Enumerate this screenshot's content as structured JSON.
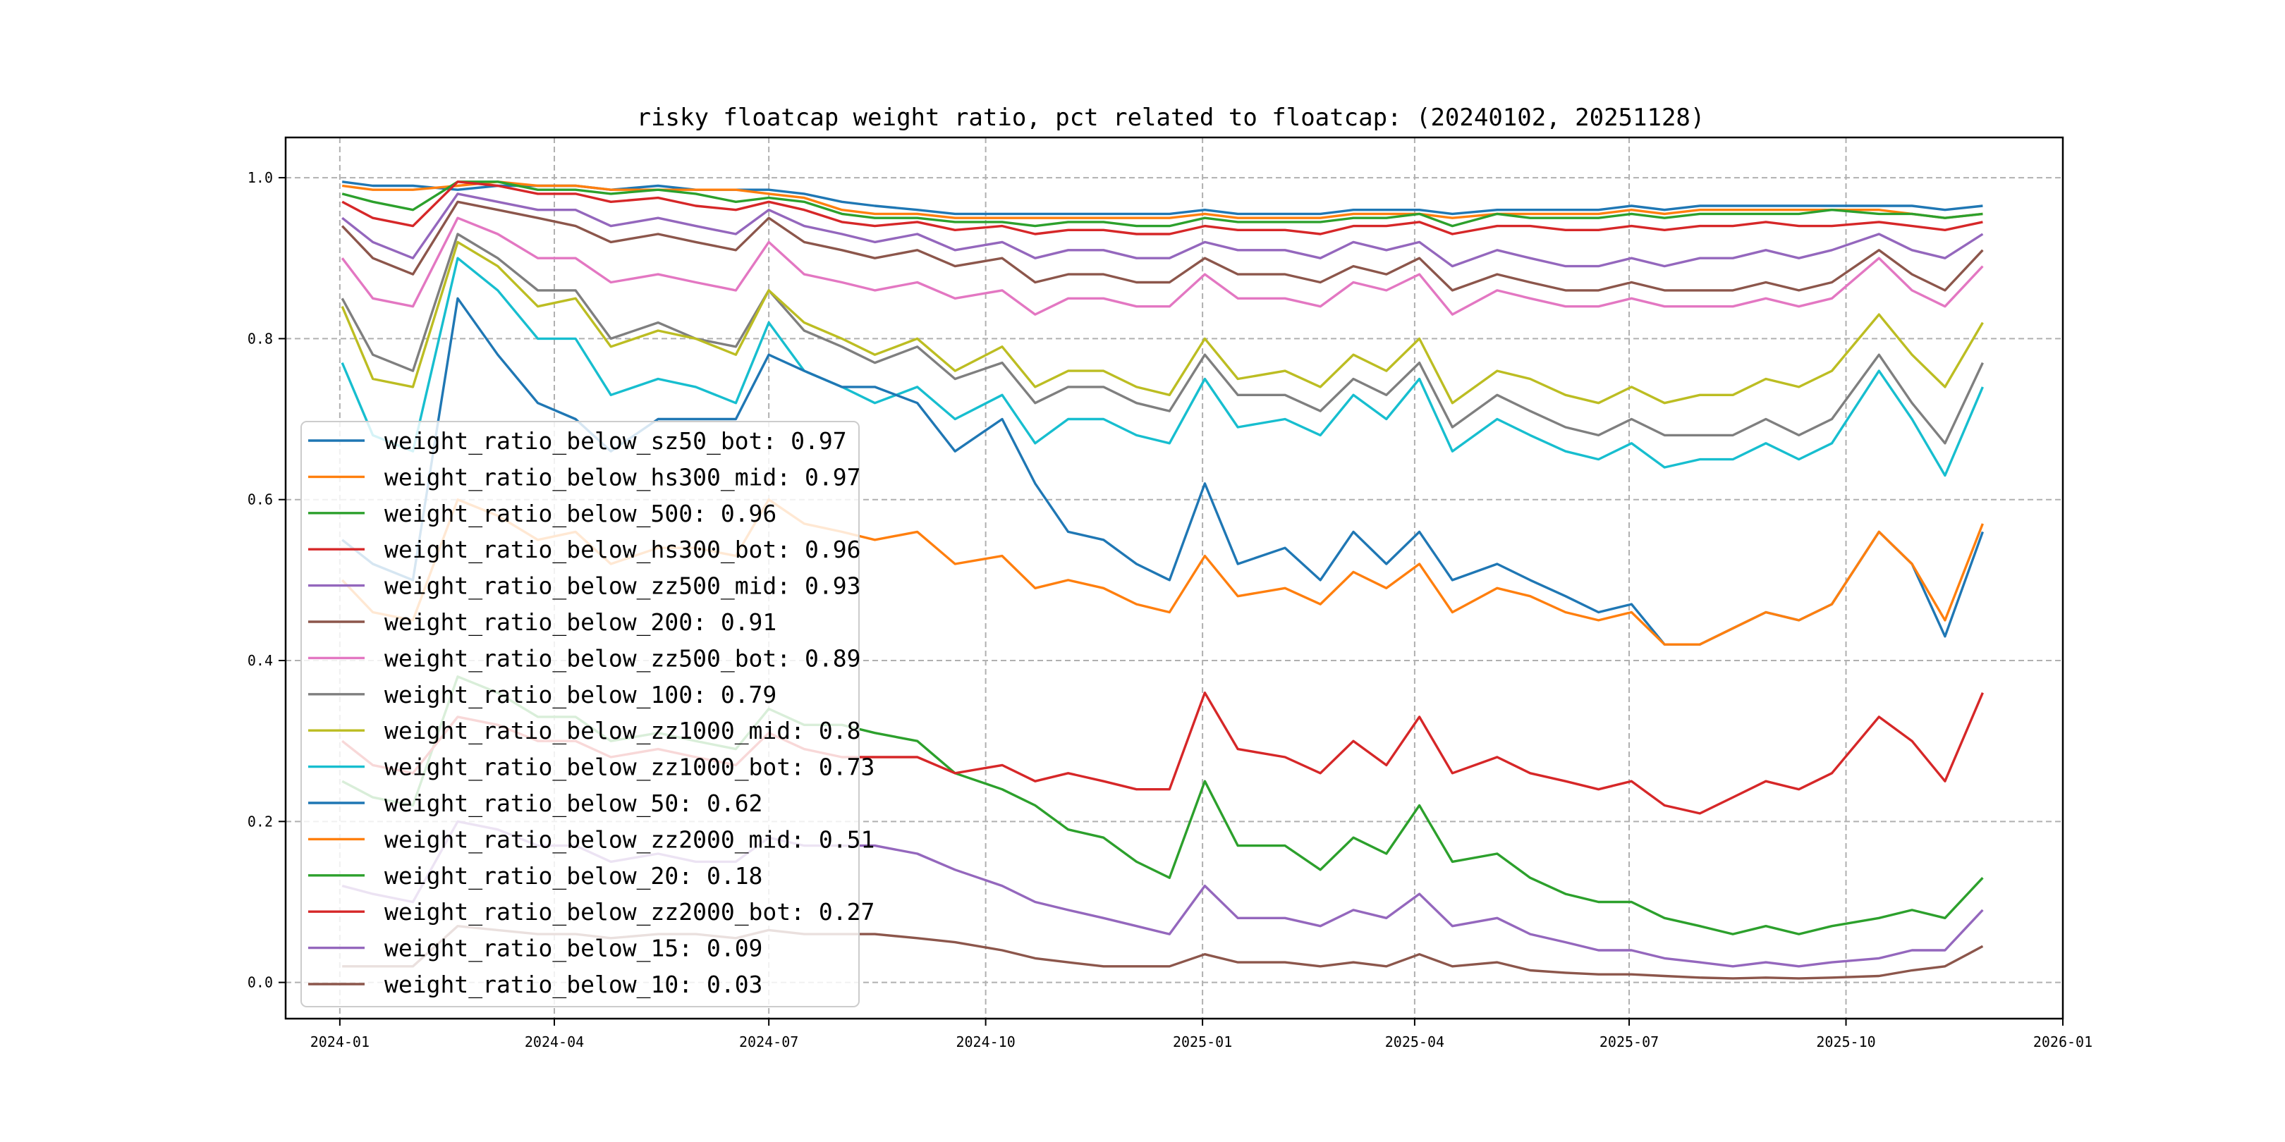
{
  "chart_data": {
    "type": "line",
    "title": "risky floatcap weight ratio, pct related to floatcap: (20240102, 20251128)",
    "xlabel": "",
    "ylabel": "",
    "x_range": [
      "2023-12-09",
      "2026-01-01"
    ],
    "ylim": [
      -0.045,
      1.05
    ],
    "grid": true,
    "legend_placement": "lower-left",
    "x_ticks": [
      "2024-01",
      "2024-04",
      "2024-07",
      "2024-10",
      "2025-01",
      "2025-04",
      "2025-07",
      "2025-10",
      "2026-01"
    ],
    "y_ticks": [
      "0.0",
      "0.2",
      "0.4",
      "0.6",
      "0.8",
      "1.0"
    ],
    "x": [
      "2024-01-02",
      "2024-01-15",
      "2024-02-01",
      "2024-02-20",
      "2024-03-08",
      "2024-03-25",
      "2024-04-10",
      "2024-04-25",
      "2024-05-15",
      "2024-05-31",
      "2024-06-17",
      "2024-07-01",
      "2024-07-16",
      "2024-08-01",
      "2024-08-15",
      "2024-09-02",
      "2024-09-18",
      "2024-10-08",
      "2024-10-22",
      "2024-11-05",
      "2024-11-20",
      "2024-12-04",
      "2024-12-18",
      "2025-01-02",
      "2025-01-16",
      "2025-02-05",
      "2025-02-20",
      "2025-03-06",
      "2025-03-20",
      "2025-04-03",
      "2025-04-17",
      "2025-05-06",
      "2025-05-20",
      "2025-06-04",
      "2025-06-18",
      "2025-07-02",
      "2025-07-16",
      "2025-07-31",
      "2025-08-14",
      "2025-08-28",
      "2025-09-11",
      "2025-09-25",
      "2025-10-15",
      "2025-10-29",
      "2025-11-12",
      "2025-11-28"
    ],
    "series": [
      {
        "name": "weight_ratio_below_sz50_bot: 0.97",
        "legend_value": "0.97",
        "color": "#1f77b4",
        "values": [
          0.995,
          0.99,
          0.99,
          0.985,
          0.99,
          0.99,
          0.99,
          0.985,
          0.99,
          0.985,
          0.985,
          0.985,
          0.98,
          0.97,
          0.965,
          0.96,
          0.955,
          0.955,
          0.955,
          0.955,
          0.955,
          0.955,
          0.955,
          0.96,
          0.955,
          0.955,
          0.955,
          0.96,
          0.96,
          0.96,
          0.955,
          0.96,
          0.96,
          0.96,
          0.96,
          0.965,
          0.96,
          0.965,
          0.965,
          0.965,
          0.965,
          0.965,
          0.965,
          0.965,
          0.96,
          0.965
        ]
      },
      {
        "name": "weight_ratio_below_hs300_mid: 0.97",
        "legend_value": "0.97",
        "color": "#ff7f0e",
        "values": [
          0.99,
          0.985,
          0.985,
          0.99,
          0.995,
          0.99,
          0.99,
          0.985,
          0.985,
          0.985,
          0.985,
          0.98,
          0.975,
          0.96,
          0.955,
          0.955,
          0.95,
          0.95,
          0.95,
          0.95,
          0.95,
          0.95,
          0.95,
          0.955,
          0.95,
          0.95,
          0.95,
          0.955,
          0.955,
          0.955,
          0.95,
          0.955,
          0.955,
          0.955,
          0.955,
          0.96,
          0.955,
          0.96,
          0.96,
          0.96,
          0.96,
          0.96,
          0.96,
          0.955,
          0.95,
          0.955
        ]
      },
      {
        "name": "weight_ratio_below_500: 0.96",
        "legend_value": "0.96",
        "color": "#2ca02c",
        "values": [
          0.98,
          0.97,
          0.96,
          0.995,
          0.995,
          0.985,
          0.985,
          0.98,
          0.985,
          0.98,
          0.97,
          0.975,
          0.97,
          0.955,
          0.95,
          0.95,
          0.945,
          0.945,
          0.94,
          0.945,
          0.945,
          0.94,
          0.94,
          0.95,
          0.945,
          0.945,
          0.945,
          0.95,
          0.95,
          0.955,
          0.94,
          0.955,
          0.95,
          0.95,
          0.95,
          0.955,
          0.95,
          0.955,
          0.955,
          0.955,
          0.955,
          0.96,
          0.955,
          0.955,
          0.95,
          0.955
        ]
      },
      {
        "name": "weight_ratio_below_hs300_bot: 0.96",
        "legend_value": "0.96",
        "color": "#d62728",
        "values": [
          0.97,
          0.95,
          0.94,
          0.995,
          0.99,
          0.98,
          0.98,
          0.97,
          0.975,
          0.965,
          0.96,
          0.97,
          0.96,
          0.945,
          0.94,
          0.945,
          0.935,
          0.94,
          0.93,
          0.935,
          0.935,
          0.93,
          0.93,
          0.94,
          0.935,
          0.935,
          0.93,
          0.94,
          0.94,
          0.945,
          0.93,
          0.94,
          0.94,
          0.935,
          0.935,
          0.94,
          0.935,
          0.94,
          0.94,
          0.945,
          0.94,
          0.94,
          0.945,
          0.94,
          0.935,
          0.945
        ]
      },
      {
        "name": "weight_ratio_below_zz500_mid: 0.93",
        "legend_value": "0.93",
        "color": "#9467bd",
        "values": [
          0.95,
          0.92,
          0.9,
          0.98,
          0.97,
          0.96,
          0.96,
          0.94,
          0.95,
          0.94,
          0.93,
          0.96,
          0.94,
          0.93,
          0.92,
          0.93,
          0.91,
          0.92,
          0.9,
          0.91,
          0.91,
          0.9,
          0.9,
          0.92,
          0.91,
          0.91,
          0.9,
          0.92,
          0.91,
          0.92,
          0.89,
          0.91,
          0.9,
          0.89,
          0.89,
          0.9,
          0.89,
          0.9,
          0.9,
          0.91,
          0.9,
          0.91,
          0.93,
          0.91,
          0.9,
          0.93
        ]
      },
      {
        "name": "weight_ratio_below_200: 0.91",
        "legend_value": "0.91",
        "color": "#8c564b",
        "values": [
          0.94,
          0.9,
          0.88,
          0.97,
          0.96,
          0.95,
          0.94,
          0.92,
          0.93,
          0.92,
          0.91,
          0.95,
          0.92,
          0.91,
          0.9,
          0.91,
          0.89,
          0.9,
          0.87,
          0.88,
          0.88,
          0.87,
          0.87,
          0.9,
          0.88,
          0.88,
          0.87,
          0.89,
          0.88,
          0.9,
          0.86,
          0.88,
          0.87,
          0.86,
          0.86,
          0.87,
          0.86,
          0.86,
          0.86,
          0.87,
          0.86,
          0.87,
          0.91,
          0.88,
          0.86,
          0.91
        ]
      },
      {
        "name": "weight_ratio_below_zz500_bot: 0.89",
        "legend_value": "0.89",
        "color": "#e377c2",
        "values": [
          0.9,
          0.85,
          0.84,
          0.95,
          0.93,
          0.9,
          0.9,
          0.87,
          0.88,
          0.87,
          0.86,
          0.92,
          0.88,
          0.87,
          0.86,
          0.87,
          0.85,
          0.86,
          0.83,
          0.85,
          0.85,
          0.84,
          0.84,
          0.88,
          0.85,
          0.85,
          0.84,
          0.87,
          0.86,
          0.88,
          0.83,
          0.86,
          0.85,
          0.84,
          0.84,
          0.85,
          0.84,
          0.84,
          0.84,
          0.85,
          0.84,
          0.85,
          0.9,
          0.86,
          0.84,
          0.89
        ]
      },
      {
        "name": "weight_ratio_below_100: 0.79",
        "legend_value": "0.79",
        "color": "#7f7f7f",
        "values": [
          0.85,
          0.78,
          0.76,
          0.93,
          0.9,
          0.86,
          0.86,
          0.8,
          0.82,
          0.8,
          0.79,
          0.86,
          0.81,
          0.79,
          0.77,
          0.79,
          0.75,
          0.77,
          0.72,
          0.74,
          0.74,
          0.72,
          0.71,
          0.78,
          0.73,
          0.73,
          0.71,
          0.75,
          0.73,
          0.77,
          0.69,
          0.73,
          0.71,
          0.69,
          0.68,
          0.7,
          0.68,
          0.68,
          0.68,
          0.7,
          0.68,
          0.7,
          0.78,
          0.72,
          0.67,
          0.77
        ]
      },
      {
        "name": "weight_ratio_below_zz1000_mid: 0.8",
        "legend_value": "0.8",
        "color": "#bcbd22",
        "values": [
          0.84,
          0.75,
          0.74,
          0.92,
          0.89,
          0.84,
          0.85,
          0.79,
          0.81,
          0.8,
          0.78,
          0.86,
          0.82,
          0.8,
          0.78,
          0.8,
          0.76,
          0.79,
          0.74,
          0.76,
          0.76,
          0.74,
          0.73,
          0.8,
          0.75,
          0.76,
          0.74,
          0.78,
          0.76,
          0.8,
          0.72,
          0.76,
          0.75,
          0.73,
          0.72,
          0.74,
          0.72,
          0.73,
          0.73,
          0.75,
          0.74,
          0.76,
          0.83,
          0.78,
          0.74,
          0.82
        ]
      },
      {
        "name": "weight_ratio_below_zz1000_bot: 0.73",
        "legend_value": "0.73",
        "color": "#17becf",
        "values": [
          0.77,
          0.68,
          0.66,
          0.9,
          0.86,
          0.8,
          0.8,
          0.73,
          0.75,
          0.74,
          0.72,
          0.82,
          0.76,
          0.74,
          0.72,
          0.74,
          0.7,
          0.73,
          0.67,
          0.7,
          0.7,
          0.68,
          0.67,
          0.75,
          0.69,
          0.7,
          0.68,
          0.73,
          0.7,
          0.75,
          0.66,
          0.7,
          0.68,
          0.66,
          0.65,
          0.67,
          0.64,
          0.65,
          0.65,
          0.67,
          0.65,
          0.67,
          0.76,
          0.7,
          0.63,
          0.74
        ]
      },
      {
        "name": "weight_ratio_below_50: 0.62",
        "legend_value": "0.62",
        "color": "#1f77b4",
        "values": [
          0.55,
          0.52,
          0.5,
          0.85,
          0.78,
          0.72,
          0.7,
          0.66,
          0.7,
          0.7,
          0.7,
          0.78,
          0.76,
          0.74,
          0.74,
          0.72,
          0.66,
          0.7,
          0.62,
          0.56,
          0.55,
          0.52,
          0.5,
          0.62,
          0.52,
          0.54,
          0.5,
          0.56,
          0.52,
          0.56,
          0.5,
          0.52,
          0.5,
          0.48,
          0.46,
          0.47,
          0.42,
          0.42,
          0.44,
          0.46,
          0.45,
          0.47,
          0.56,
          0.52,
          0.43,
          0.56
        ]
      },
      {
        "name": "weight_ratio_below_zz2000_mid: 0.51",
        "legend_value": "0.51",
        "color": "#ff7f0e",
        "values": [
          0.5,
          0.46,
          0.45,
          0.6,
          0.58,
          0.55,
          0.56,
          0.52,
          0.54,
          0.54,
          0.53,
          0.6,
          0.57,
          0.56,
          0.55,
          0.56,
          0.52,
          0.53,
          0.49,
          0.5,
          0.49,
          0.47,
          0.46,
          0.53,
          0.48,
          0.49,
          0.47,
          0.51,
          0.49,
          0.52,
          0.46,
          0.49,
          0.48,
          0.46,
          0.45,
          0.46,
          0.42,
          0.42,
          0.44,
          0.46,
          0.45,
          0.47,
          0.56,
          0.52,
          0.45,
          0.57
        ]
      },
      {
        "name": "weight_ratio_below_20: 0.18",
        "legend_value": "0.18",
        "color": "#2ca02c",
        "values": [
          0.25,
          0.23,
          0.22,
          0.38,
          0.36,
          0.33,
          0.33,
          0.3,
          0.31,
          0.3,
          0.29,
          0.34,
          0.32,
          0.32,
          0.31,
          0.3,
          0.26,
          0.24,
          0.22,
          0.19,
          0.18,
          0.15,
          0.13,
          0.25,
          0.17,
          0.17,
          0.14,
          0.18,
          0.16,
          0.22,
          0.15,
          0.16,
          0.13,
          0.11,
          0.1,
          0.1,
          0.08,
          0.07,
          0.06,
          0.07,
          0.06,
          0.07,
          0.08,
          0.09,
          0.08,
          0.13
        ]
      },
      {
        "name": "weight_ratio_below_zz2000_bot: 0.27",
        "legend_value": "0.27",
        "color": "#d62728",
        "values": [
          0.3,
          0.27,
          0.26,
          0.33,
          0.32,
          0.3,
          0.3,
          0.28,
          0.29,
          0.28,
          0.27,
          0.31,
          0.29,
          0.28,
          0.28,
          0.28,
          0.26,
          0.27,
          0.25,
          0.26,
          0.25,
          0.24,
          0.24,
          0.36,
          0.29,
          0.28,
          0.26,
          0.3,
          0.27,
          0.33,
          0.26,
          0.28,
          0.26,
          0.25,
          0.24,
          0.25,
          0.22,
          0.21,
          0.23,
          0.25,
          0.24,
          0.26,
          0.33,
          0.3,
          0.25,
          0.36
        ]
      },
      {
        "name": "weight_ratio_below_15: 0.09",
        "legend_value": "0.09",
        "color": "#9467bd",
        "values": [
          0.12,
          0.11,
          0.1,
          0.2,
          0.19,
          0.17,
          0.17,
          0.15,
          0.16,
          0.15,
          0.15,
          0.18,
          0.17,
          0.17,
          0.17,
          0.16,
          0.14,
          0.12,
          0.1,
          0.09,
          0.08,
          0.07,
          0.06,
          0.12,
          0.08,
          0.08,
          0.07,
          0.09,
          0.08,
          0.11,
          0.07,
          0.08,
          0.06,
          0.05,
          0.04,
          0.04,
          0.03,
          0.025,
          0.02,
          0.025,
          0.02,
          0.025,
          0.03,
          0.04,
          0.04,
          0.09
        ]
      },
      {
        "name": "weight_ratio_below_10: 0.03",
        "legend_value": "0.03",
        "color": "#8c564b",
        "values": [
          0.02,
          0.02,
          0.02,
          0.07,
          0.065,
          0.06,
          0.06,
          0.055,
          0.06,
          0.06,
          0.055,
          0.065,
          0.06,
          0.06,
          0.06,
          0.055,
          0.05,
          0.04,
          0.03,
          0.025,
          0.02,
          0.02,
          0.02,
          0.035,
          0.025,
          0.025,
          0.02,
          0.025,
          0.02,
          0.035,
          0.02,
          0.025,
          0.015,
          0.012,
          0.01,
          0.01,
          0.008,
          0.006,
          0.005,
          0.006,
          0.005,
          0.006,
          0.008,
          0.015,
          0.02,
          0.045
        ]
      }
    ]
  }
}
